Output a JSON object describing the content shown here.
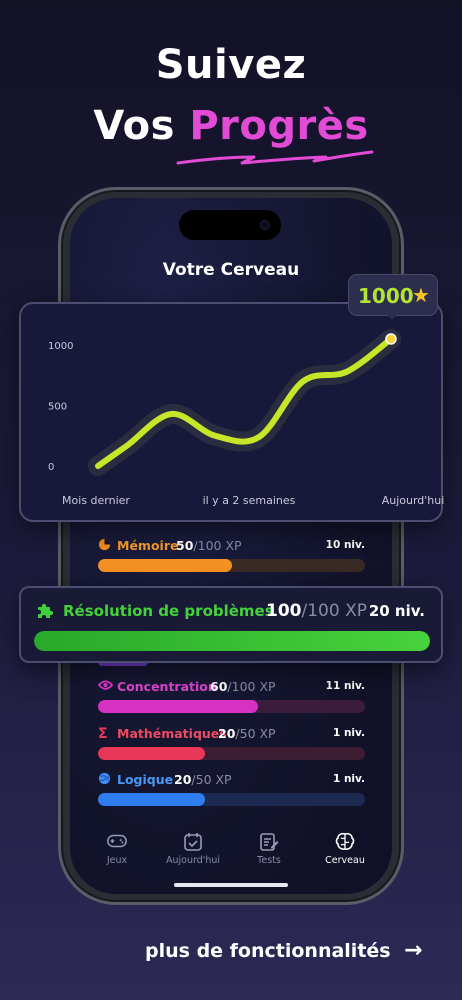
{
  "headline": {
    "line1": "Suivez",
    "line2_prefix": "Vos",
    "line2_accent": "Progrès"
  },
  "screen": {
    "title": "Votre Cerveau"
  },
  "badge": {
    "value": "1000",
    "icon": "star-icon"
  },
  "chart_data": {
    "type": "line",
    "title": "",
    "xlabel": "",
    "ylabel": "",
    "x_tick_labels": [
      "Mois dernier",
      "il y a 2 semaines",
      "Aujourd'hui"
    ],
    "y_ticks": [
      0,
      500,
      1000
    ],
    "y_tick_labels": [
      "0",
      "500",
      "1000"
    ],
    "ylim": [
      0,
      1000
    ],
    "grid": false,
    "line_color": "#c7e629",
    "series": [
      {
        "x": [
          0,
          0.1,
          0.25,
          0.4,
          0.55,
          0.7,
          0.85,
          1.0
        ],
        "y": [
          0,
          170,
          430,
          250,
          240,
          700,
          780,
          1050
        ]
      }
    ]
  },
  "stats": [
    {
      "icon": "pie-chart-icon",
      "icon_color": "#f08a1c",
      "name": "Mémoire",
      "name_color": "#f49a2a",
      "xp": "50",
      "max": "/100 XP",
      "level": "10 niv.",
      "progress": 0.5,
      "fill_color": "#f39222",
      "track_color": "#3a2a25"
    },
    {
      "icon": "eye-icon",
      "icon_color": "#d938c6",
      "name": "Concentration",
      "name_color": "#de45cf",
      "xp": "60",
      "max": "/100 XP",
      "level": "11 niv.",
      "progress": 0.6,
      "fill_color": "#d631c3",
      "track_color": "#3b1c3d"
    },
    {
      "icon": "sigma-icon",
      "icon_color": "#e83a56",
      "name": "Mathématiques",
      "name_color": "#ee4a62",
      "xp": "20",
      "max": "/50 XP",
      "level": "1 niv.",
      "progress": 0.4,
      "fill_color": "#e9375a",
      "track_color": "#3d1d31"
    },
    {
      "icon": "globe-icon",
      "icon_color": "#3d8df2",
      "name": "Logique",
      "name_color": "#4a98f5",
      "xp": "20",
      "max": "/50 XP",
      "level": "1 niv.",
      "progress": 0.4,
      "fill_color": "#2f7ef0",
      "track_color": "#1c2a52"
    }
  ],
  "featured": {
    "icon": "puzzle-icon",
    "name": "Résolution de problèmes",
    "xp": "100",
    "max": "/100 XP",
    "level": "20 niv.",
    "progress": 1.0
  },
  "nav": [
    {
      "icon": "gamepad-icon",
      "label": "Jeux",
      "active": false
    },
    {
      "icon": "calendar-check-icon",
      "label": "Aujourd'hui",
      "active": false
    },
    {
      "icon": "clipboard-edit-icon",
      "label": "Tests",
      "active": false
    },
    {
      "icon": "brain-icon",
      "label": "Cerveau",
      "active": true
    }
  ],
  "cta": {
    "label": "plus de fonctionnalités",
    "arrow": "→"
  },
  "colors": {
    "accent": "#e24bd6",
    "lime": "#b3e433",
    "green": "#43d23a"
  }
}
